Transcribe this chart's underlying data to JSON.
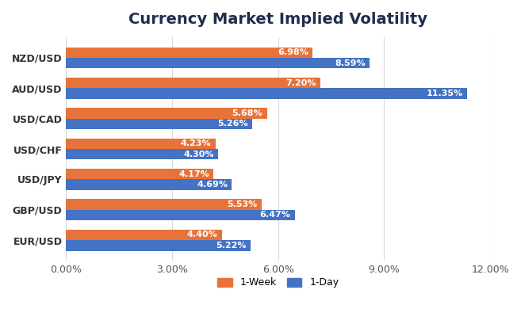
{
  "title": "Currency Market Implied Volatility",
  "categories": [
    "NZD/USD",
    "AUD/USD",
    "USD/CAD",
    "USD/CHF",
    "USD/JPY",
    "GBP/USD",
    "EUR/USD"
  ],
  "week1_values": [
    6.98,
    7.2,
    5.68,
    4.23,
    4.17,
    5.53,
    4.4
  ],
  "day1_values": [
    8.59,
    11.35,
    5.26,
    4.3,
    4.69,
    6.47,
    5.22
  ],
  "week1_color": "#E8733A",
  "day1_color": "#4472C4",
  "week1_label": "1-Week",
  "day1_label": "1-Day",
  "xlim": [
    0,
    12.0
  ],
  "xticks": [
    0,
    3.0,
    6.0,
    9.0,
    12.0
  ],
  "xtick_labels": [
    "0.00%",
    "3.00%",
    "6.00%",
    "9.00%",
    "12.00%"
  ],
  "bar_height": 0.35,
  "background_color": "#FFFFFF",
  "grid_color": "#D9D9D9",
  "title_color": "#1F2D4E",
  "label_fontsize": 9,
  "title_fontsize": 14,
  "tick_fontsize": 9,
  "value_fontsize": 8
}
